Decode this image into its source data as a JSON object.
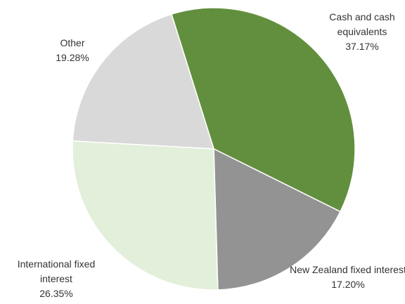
{
  "chart_data": {
    "type": "pie",
    "categories": [
      "Cash and cash equivalents",
      "New Zealand fixed interest",
      "International fixed interest",
      "Other"
    ],
    "values": [
      37.17,
      17.2,
      26.35,
      19.28
    ],
    "value_labels": [
      "37.17%",
      "17.20%",
      "26.35%",
      "19.28%"
    ],
    "colors": [
      "#628f3e",
      "#939393",
      "#e2efda",
      "#d9d9d9"
    ]
  }
}
